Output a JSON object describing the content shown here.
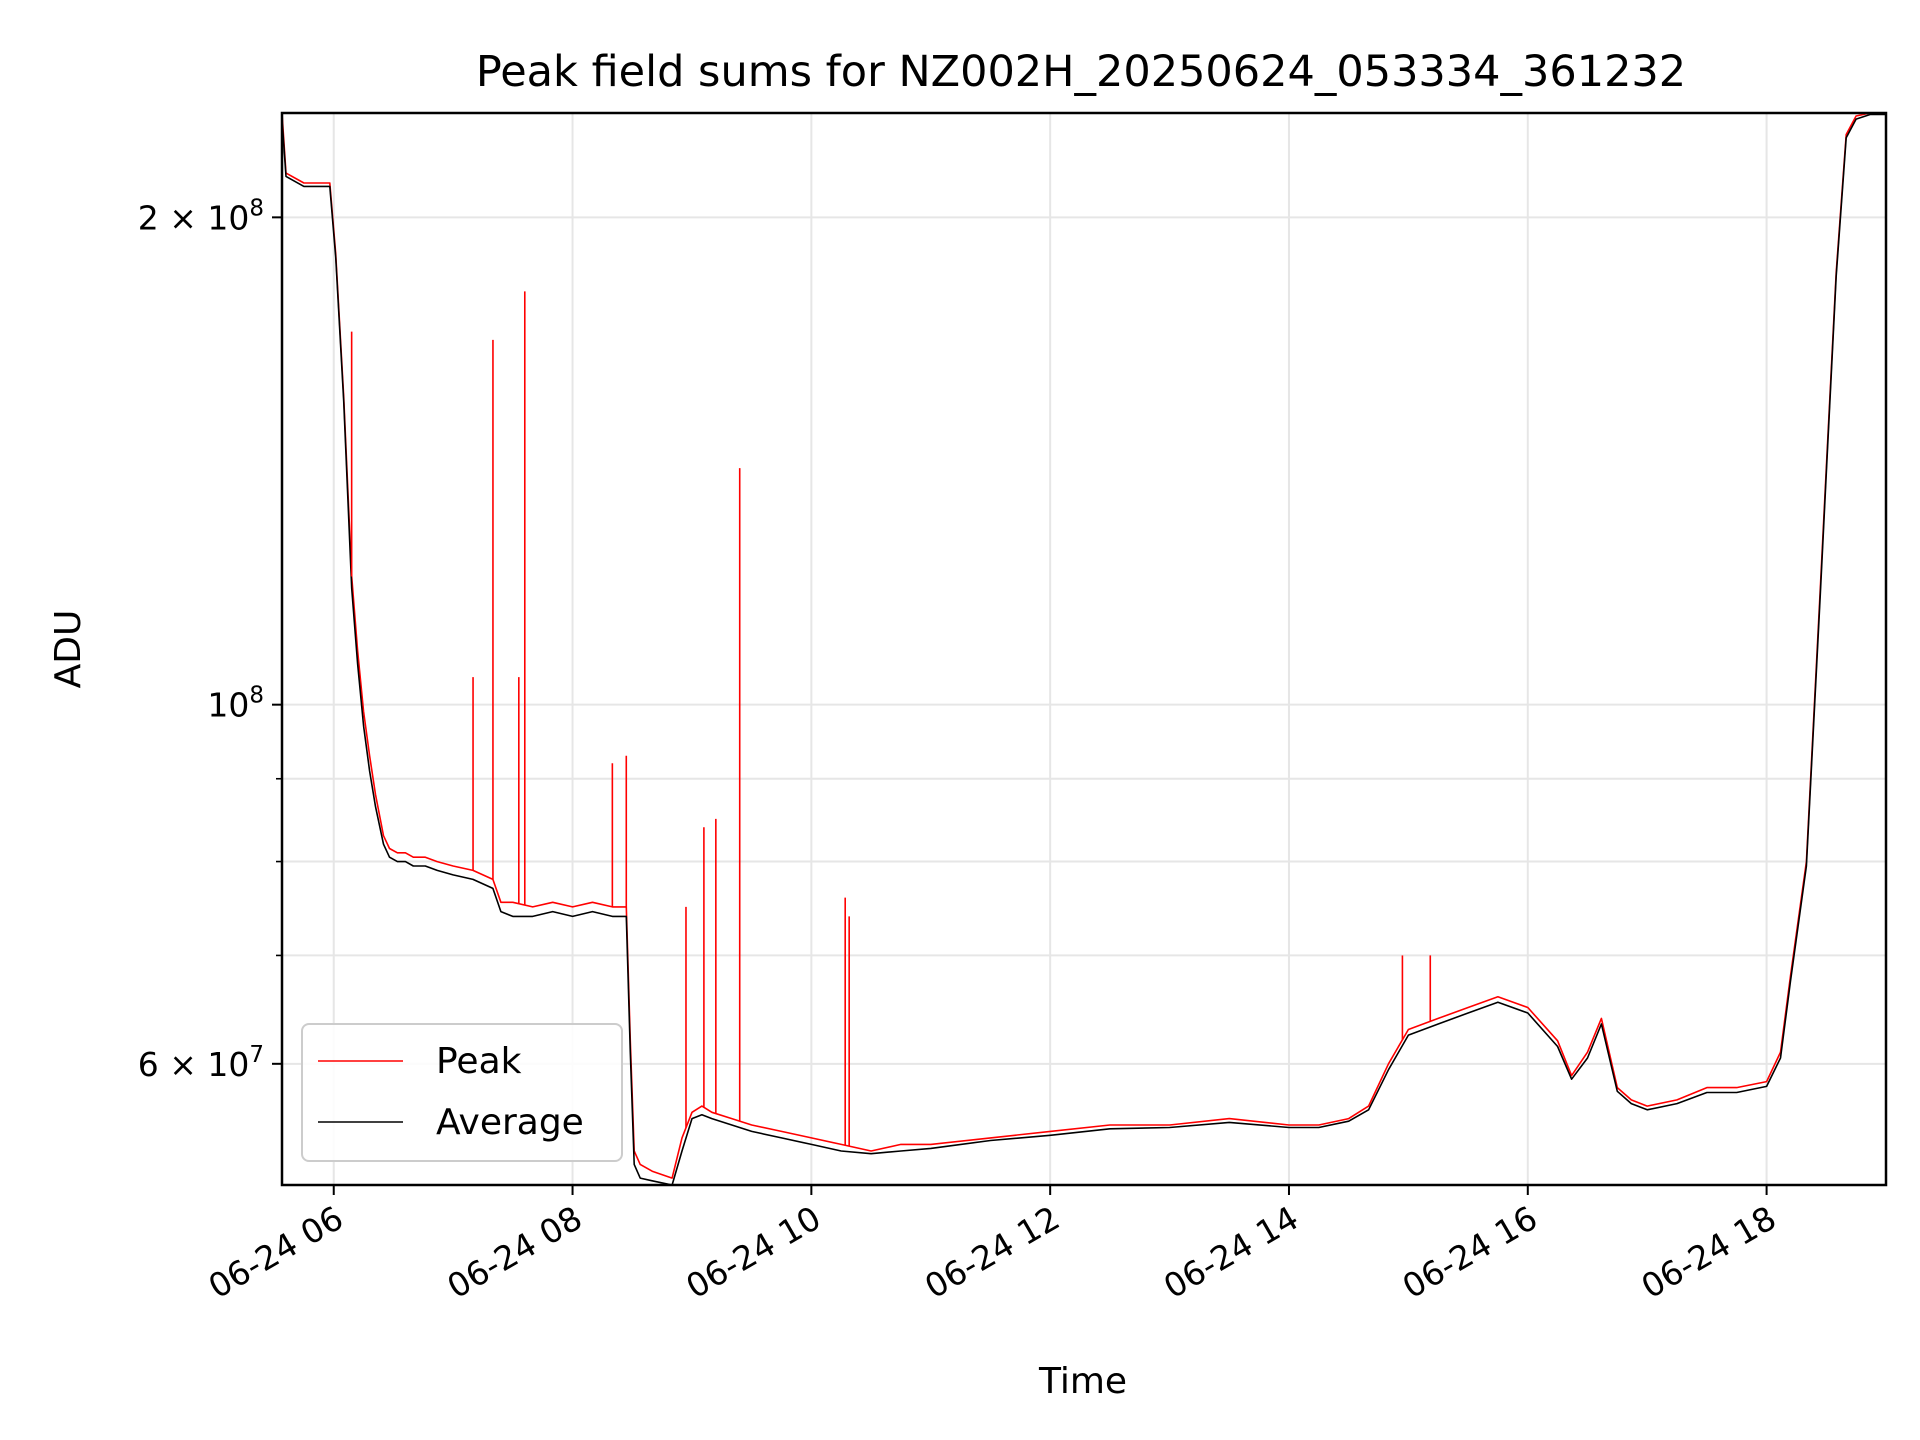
{
  "chart_data": {
    "type": "line",
    "title": "Peak field sums for NZ002H_20250624_053334_361232",
    "xlabel": "Time",
    "ylabel": "ADU",
    "x_scale": "time",
    "y_scale": "log",
    "xlim": [
      "2025-06-24 05:34",
      "2025-06-24 19:00"
    ],
    "ylim": [
      50500000,
      232000000
    ],
    "x_ticks": [
      "06-24 06",
      "06-24 08",
      "06-24 10",
      "06-24 12",
      "06-24 14",
      "06-24 16",
      "06-24 18"
    ],
    "y_ticks": [
      {
        "value": 200000000,
        "mantissa": "2",
        "times": "×",
        "base": "10",
        "exp": "8"
      },
      {
        "value": 100000000,
        "mantissa": "",
        "times": "",
        "base": "10",
        "exp": "8"
      },
      {
        "value": 60000000,
        "mantissa": "6",
        "times": "×",
        "base": "10",
        "exp": "7"
      }
    ],
    "y_minor_ticks": [
      70000000,
      80000000,
      90000000
    ],
    "grid": true,
    "legend_position": "lower-left",
    "series": [
      {
        "name": "Peak",
        "color": "#ff0000",
        "x": [
          "2025-06-24 05:34",
          "2025-06-24 05:36",
          "2025-06-24 05:45",
          "2025-06-24 05:58",
          "2025-06-24 06:01",
          "2025-06-24 06:05",
          "2025-06-24 06:09",
          "2025-06-24 06:12",
          "2025-06-24 06:15",
          "2025-06-24 06:18",
          "2025-06-24 06:21",
          "2025-06-24 06:25",
          "2025-06-24 06:28",
          "2025-06-24 06:32",
          "2025-06-24 06:36",
          "2025-06-24 06:40",
          "2025-06-24 06:46",
          "2025-06-24 06:52",
          "2025-06-24 07:00",
          "2025-06-24 07:10",
          "2025-06-24 07:20",
          "2025-06-24 07:24",
          "2025-06-24 07:30",
          "2025-06-24 07:40",
          "2025-06-24 07:50",
          "2025-06-24 08:00",
          "2025-06-24 08:10",
          "2025-06-24 08:20",
          "2025-06-24 08:27",
          "2025-06-24 08:29",
          "2025-06-24 08:31",
          "2025-06-24 08:34",
          "2025-06-24 08:40",
          "2025-06-24 08:50",
          "2025-06-24 08:55",
          "2025-06-24 09:00",
          "2025-06-24 09:05",
          "2025-06-24 09:10",
          "2025-06-24 09:20",
          "2025-06-24 09:30",
          "2025-06-24 09:45",
          "2025-06-24 10:00",
          "2025-06-24 10:15",
          "2025-06-24 10:30",
          "2025-06-24 10:45",
          "2025-06-24 11:00",
          "2025-06-24 11:30",
          "2025-06-24 12:00",
          "2025-06-24 12:30",
          "2025-06-24 13:00",
          "2025-06-24 13:30",
          "2025-06-24 14:00",
          "2025-06-24 14:15",
          "2025-06-24 14:30",
          "2025-06-24 14:40",
          "2025-06-24 14:50",
          "2025-06-24 15:00",
          "2025-06-24 15:15",
          "2025-06-24 15:30",
          "2025-06-24 15:45",
          "2025-06-24 16:00",
          "2025-06-24 16:15",
          "2025-06-24 16:22",
          "2025-06-24 16:30",
          "2025-06-24 16:37",
          "2025-06-24 16:45",
          "2025-06-24 16:52",
          "2025-06-24 17:00",
          "2025-06-24 17:15",
          "2025-06-24 17:30",
          "2025-06-24 17:45",
          "2025-06-24 18:00",
          "2025-06-24 18:07",
          "2025-06-24 18:12",
          "2025-06-24 18:20",
          "2025-06-24 18:27",
          "2025-06-24 18:30",
          "2025-06-24 18:35",
          "2025-06-24 18:40",
          "2025-06-24 18:45",
          "2025-06-24 18:52",
          "2025-06-24 19:00"
        ],
        "y": [
          232000000,
          213000000,
          210000000,
          210000000,
          190000000,
          155000000,
          120000000,
          108000000,
          99000000,
          93000000,
          88000000,
          83000000,
          81500000,
          81000000,
          81000000,
          80500000,
          80500000,
          80000000,
          79500000,
          79000000,
          78000000,
          75500000,
          75500000,
          75000000,
          75500000,
          75000000,
          75500000,
          75000000,
          75000000,
          62000000,
          53000000,
          52000000,
          51500000,
          51000000,
          54000000,
          56000000,
          56500000,
          56000000,
          55500000,
          55000000,
          54500000,
          54000000,
          53500000,
          53000000,
          53500000,
          53500000,
          54000000,
          54500000,
          55000000,
          55000000,
          55500000,
          55000000,
          55000000,
          55500000,
          56500000,
          60000000,
          63000000,
          64000000,
          65000000,
          66000000,
          65000000,
          62000000,
          59000000,
          61000000,
          64000000,
          58000000,
          57000000,
          56500000,
          57000000,
          58000000,
          58000000,
          58500000,
          61000000,
          68000000,
          80000000,
          118000000,
          140000000,
          185000000,
          225000000,
          231000000,
          232000000,
          232000000
        ]
      },
      {
        "name": "Average",
        "color": "#000000",
        "x": [
          "2025-06-24 05:34",
          "2025-06-24 05:36",
          "2025-06-24 05:45",
          "2025-06-24 05:58",
          "2025-06-24 06:01",
          "2025-06-24 06:05",
          "2025-06-24 06:09",
          "2025-06-24 06:12",
          "2025-06-24 06:15",
          "2025-06-24 06:18",
          "2025-06-24 06:21",
          "2025-06-24 06:25",
          "2025-06-24 06:28",
          "2025-06-24 06:32",
          "2025-06-24 06:36",
          "2025-06-24 06:40",
          "2025-06-24 06:46",
          "2025-06-24 06:52",
          "2025-06-24 07:00",
          "2025-06-24 07:10",
          "2025-06-24 07:20",
          "2025-06-24 07:24",
          "2025-06-24 07:30",
          "2025-06-24 07:40",
          "2025-06-24 07:50",
          "2025-06-24 08:00",
          "2025-06-24 08:10",
          "2025-06-24 08:20",
          "2025-06-24 08:27",
          "2025-06-24 08:29",
          "2025-06-24 08:31",
          "2025-06-24 08:34",
          "2025-06-24 08:40",
          "2025-06-24 08:50",
          "2025-06-24 08:55",
          "2025-06-24 09:00",
          "2025-06-24 09:05",
          "2025-06-24 09:10",
          "2025-06-24 09:20",
          "2025-06-24 09:30",
          "2025-06-24 09:45",
          "2025-06-24 10:00",
          "2025-06-24 10:15",
          "2025-06-24 10:30",
          "2025-06-24 10:45",
          "2025-06-24 11:00",
          "2025-06-24 11:30",
          "2025-06-24 12:00",
          "2025-06-24 12:30",
          "2025-06-24 13:00",
          "2025-06-24 13:30",
          "2025-06-24 14:00",
          "2025-06-24 14:15",
          "2025-06-24 14:30",
          "2025-06-24 14:40",
          "2025-06-24 14:50",
          "2025-06-24 15:00",
          "2025-06-24 15:15",
          "2025-06-24 15:30",
          "2025-06-24 15:45",
          "2025-06-24 16:00",
          "2025-06-24 16:15",
          "2025-06-24 16:22",
          "2025-06-24 16:30",
          "2025-06-24 16:37",
          "2025-06-24 16:45",
          "2025-06-24 16:52",
          "2025-06-24 17:00",
          "2025-06-24 17:15",
          "2025-06-24 17:30",
          "2025-06-24 17:45",
          "2025-06-24 18:00",
          "2025-06-24 18:07",
          "2025-06-24 18:12",
          "2025-06-24 18:20",
          "2025-06-24 18:27",
          "2025-06-24 18:30",
          "2025-06-24 18:35",
          "2025-06-24 18:40",
          "2025-06-24 18:45",
          "2025-06-24 18:52",
          "2025-06-24 19:00"
        ],
        "y": [
          230000000,
          212000000,
          209000000,
          209000000,
          189000000,
          154000000,
          118000000,
          106000000,
          97000000,
          91000000,
          86500000,
          82000000,
          80500000,
          80000000,
          80000000,
          79500000,
          79500000,
          79000000,
          78500000,
          78000000,
          77000000,
          74500000,
          74000000,
          74000000,
          74500000,
          74000000,
          74500000,
          74000000,
          74000000,
          61000000,
          52000000,
          51000000,
          50800000,
          50500000,
          53000000,
          55500000,
          55800000,
          55500000,
          55000000,
          54500000,
          54000000,
          53500000,
          53000000,
          52800000,
          53000000,
          53200000,
          53800000,
          54200000,
          54700000,
          54800000,
          55200000,
          54800000,
          54800000,
          55300000,
          56200000,
          59500000,
          62500000,
          63500000,
          64500000,
          65500000,
          64500000,
          61500000,
          58700000,
          60500000,
          63500000,
          57700000,
          56700000,
          56200000,
          56700000,
          57600000,
          57600000,
          58100000,
          60500000,
          67500000,
          79500000,
          117000000,
          139000000,
          184000000,
          224000000,
          230000000,
          231500000,
          231500000
        ]
      }
    ],
    "spikes": [
      {
        "series": "Peak",
        "x": "2025-06-24 06:09",
        "y": 170000000
      },
      {
        "series": "Peak",
        "x": "2025-06-24 07:20",
        "y": 168000000
      },
      {
        "series": "Peak",
        "x": "2025-06-24 07:36",
        "y": 180000000
      },
      {
        "series": "Peak",
        "x": "2025-06-24 07:10",
        "y": 104000000
      },
      {
        "series": "Peak",
        "x": "2025-06-24 07:33",
        "y": 104000000
      },
      {
        "series": "Peak",
        "x": "2025-06-24 08:27",
        "y": 93000000
      },
      {
        "series": "Peak",
        "x": "2025-06-24 08:20",
        "y": 92000000
      },
      {
        "series": "Peak",
        "x": "2025-06-24 09:24",
        "y": 140000000
      },
      {
        "series": "Peak",
        "x": "2025-06-24 08:57",
        "y": 75000000
      },
      {
        "series": "Peak",
        "x": "2025-06-24 09:06",
        "y": 84000000
      },
      {
        "series": "Peak",
        "x": "2025-06-24 09:12",
        "y": 85000000
      },
      {
        "series": "Peak",
        "x": "2025-06-24 10:17",
        "y": 76000000
      },
      {
        "series": "Peak",
        "x": "2025-06-24 10:19",
        "y": 74000000
      },
      {
        "series": "Peak",
        "x": "2025-06-24 14:57",
        "y": 70000000
      },
      {
        "series": "Peak",
        "x": "2025-06-24 15:11",
        "y": 70000000
      }
    ]
  }
}
